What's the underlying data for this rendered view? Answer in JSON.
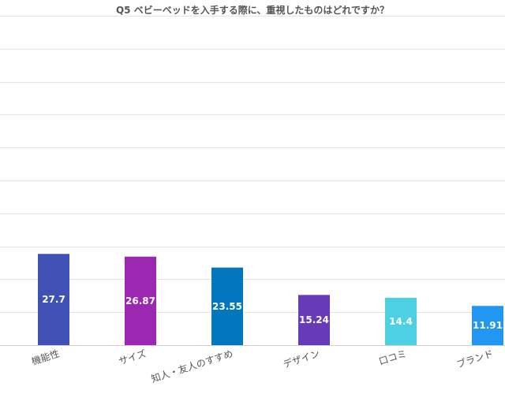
{
  "chart_data": {
    "type": "bar",
    "title": "Q5 ベビーベッドを入手する際に、重視したものはどれですか？",
    "categories": [
      "機能性",
      "サイズ",
      "知人・友人のすすめ",
      "デザイン",
      "口コミ",
      "ブランド"
    ],
    "values": [
      27.7,
      26.87,
      23.55,
      15.24,
      14.4,
      11.91
    ],
    "colors": [
      "#3f51b5",
      "#9c27b0",
      "#0277bd",
      "#673ab7",
      "#4dd0e1",
      "#2196f3"
    ],
    "ylim": [
      0,
      100
    ],
    "grid": true,
    "legend": "none",
    "xlabel": "",
    "ylabel": ""
  }
}
